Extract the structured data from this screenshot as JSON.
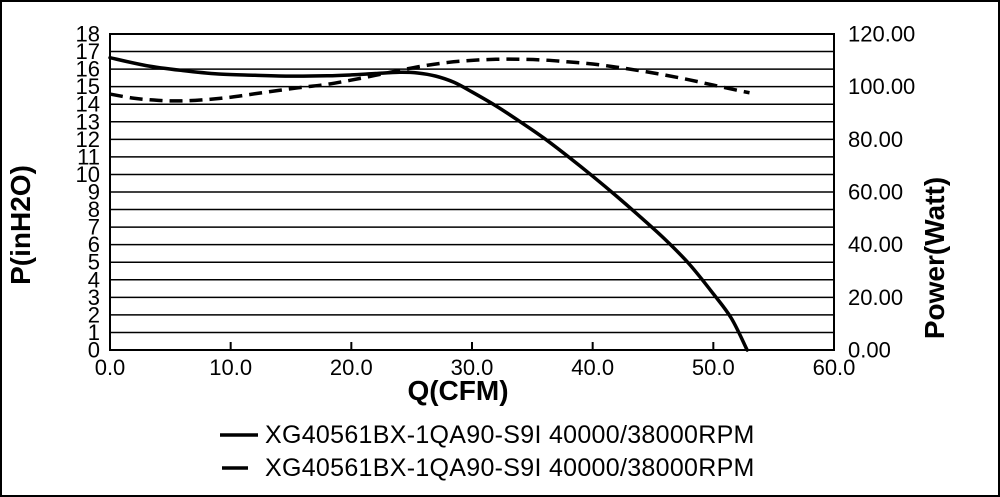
{
  "chart": {
    "x_axis": {
      "label": "Q(CFM)",
      "tick_labels": [
        "0.0",
        "10.0",
        "20.0",
        "30.0",
        "40.0",
        "50.0",
        "60.0"
      ],
      "tick_values": [
        0,
        10,
        20,
        30,
        40,
        50,
        60
      ]
    },
    "y_left": {
      "label": "P(inH2O)",
      "tick_labels": [
        "0",
        "1",
        "2",
        "3",
        "4",
        "5",
        "6",
        "7",
        "8",
        "9",
        "10",
        "11",
        "12",
        "13",
        "14",
        "15",
        "16",
        "17",
        "18"
      ],
      "tick_values": [
        0,
        1,
        2,
        3,
        4,
        5,
        6,
        7,
        8,
        9,
        10,
        11,
        12,
        13,
        14,
        15,
        16,
        17,
        18
      ]
    },
    "y_right": {
      "label": "Power(Watt)",
      "tick_labels": [
        "0.00",
        "20.00",
        "40.00",
        "60.00",
        "80.00",
        "100.00",
        "120.00"
      ],
      "tick_values": [
        0,
        20,
        40,
        60,
        80,
        100,
        120
      ]
    },
    "legend": [
      {
        "label": "XG40561BX-1QA90-S9I 40000/38000RPM",
        "style": "solid"
      },
      {
        "label": "XG40561BX-1QA90-S9I 40000/38000RPM",
        "style": "dashed"
      }
    ]
  },
  "colors": {
    "foreground": "#000000",
    "background": "#ffffff"
  },
  "chart_data": {
    "type": "line",
    "title": "",
    "xlabel": "Q(CFM)",
    "ylabel_left": "P(inH2O)",
    "ylabel_right": "Power(Watt)",
    "xlim": [
      0,
      60
    ],
    "ylim_left": [
      0,
      18
    ],
    "ylim_right": [
      0,
      120
    ],
    "grid": "horizontal",
    "legend_position": "bottom",
    "series": [
      {
        "name": "XG40561BX-1QA90-S9I 40000/38000RPM",
        "axis": "left",
        "style": "solid",
        "units": "inH2O",
        "points": [
          [
            0,
            16.65
          ],
          [
            3,
            16.2
          ],
          [
            6,
            15.92
          ],
          [
            9,
            15.72
          ],
          [
            12,
            15.65
          ],
          [
            15,
            15.6
          ],
          [
            18,
            15.62
          ],
          [
            20,
            15.67
          ],
          [
            22,
            15.75
          ],
          [
            24,
            15.82
          ],
          [
            25.5,
            15.78
          ],
          [
            27,
            15.6
          ],
          [
            28.5,
            15.25
          ],
          [
            30,
            14.7
          ],
          [
            32,
            13.9
          ],
          [
            34,
            13.0
          ],
          [
            36,
            12.05
          ],
          [
            38,
            11.0
          ],
          [
            40,
            9.9
          ],
          [
            42,
            8.75
          ],
          [
            44,
            7.55
          ],
          [
            46,
            6.3
          ],
          [
            48,
            4.9
          ],
          [
            50,
            3.2
          ],
          [
            51.5,
            1.8
          ],
          [
            52.8,
            0
          ]
        ]
      },
      {
        "name": "XG40561BX-1QA90-S9I 40000/38000RPM",
        "axis": "right",
        "style": "dashed",
        "units": "Watt",
        "points": [
          [
            0,
            97.2
          ],
          [
            2,
            95.6
          ],
          [
            4,
            94.8
          ],
          [
            6,
            94.6
          ],
          [
            8,
            95.1
          ],
          [
            10,
            96.0
          ],
          [
            12,
            97.3
          ],
          [
            14,
            98.6
          ],
          [
            16,
            99.8
          ],
          [
            18,
            100.9
          ],
          [
            20,
            102.5
          ],
          [
            22,
            104.3
          ],
          [
            24,
            106.2
          ],
          [
            26,
            107.9
          ],
          [
            28,
            109.2
          ],
          [
            30,
            110.0
          ],
          [
            32,
            110.4
          ],
          [
            34,
            110.4
          ],
          [
            36,
            110.1
          ],
          [
            38,
            109.4
          ],
          [
            40,
            108.6
          ],
          [
            42,
            107.4
          ],
          [
            44,
            106.0
          ],
          [
            46,
            104.4
          ],
          [
            48,
            102.6
          ],
          [
            50,
            100.6
          ],
          [
            52,
            98.6
          ],
          [
            53,
            97.7
          ]
        ]
      }
    ]
  }
}
